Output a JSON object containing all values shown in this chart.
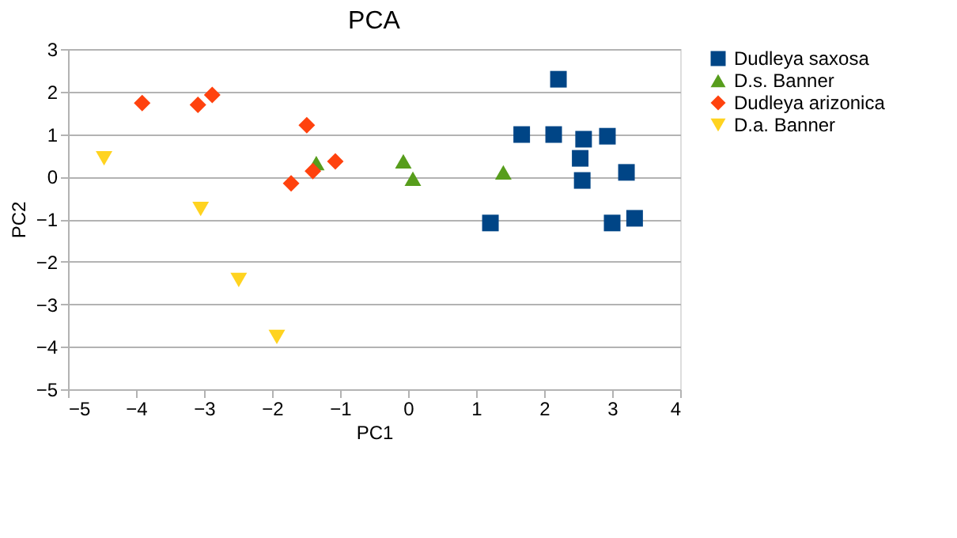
{
  "chart_data": {
    "type": "scatter",
    "title": "PCA",
    "xlabel": "PC1",
    "ylabel": "PC2",
    "xlim": [
      -5,
      4
    ],
    "xticks": [
      -5,
      -4,
      -3,
      -2,
      -1,
      0,
      1,
      2,
      3,
      4
    ],
    "ylim": [
      -5,
      3
    ],
    "yticks": [
      -5,
      -4,
      -3,
      -2,
      -1,
      0,
      1,
      2,
      3
    ],
    "grid": "y",
    "legend": "right",
    "series": [
      {
        "name": "Dudleya saxosa",
        "color": "#004586",
        "marker": "square",
        "x": [
          1.21,
          1.67,
          2.14,
          2.21,
          2.58,
          2.53,
          2.56,
          2.93,
          3.0,
          3.21,
          3.33
        ],
        "values": [
          -1.09,
          0.99,
          0.99,
          2.29,
          0.88,
          0.43,
          -0.09,
          0.95,
          -1.09,
          0.1,
          -0.98
        ]
      },
      {
        "name": "D.s. Banner",
        "color": "#579d1c",
        "marker": "triangle-up",
        "x": [
          1.4,
          -1.35,
          -0.07,
          0.07
        ],
        "values": [
          0.1,
          0.32,
          0.36,
          -0.05
        ]
      },
      {
        "name": "Dudleya arizonica",
        "color": "#ff420e",
        "marker": "diamond",
        "x": [
          -3.91,
          -3.09,
          -2.88,
          -1.49,
          -1.72,
          -1.4,
          -1.07
        ],
        "values": [
          1.73,
          1.69,
          1.92,
          1.21,
          -0.16,
          0.13,
          0.36
        ]
      },
      {
        "name": "D.a. Banner",
        "color": "#ffd320",
        "marker": "triangle-down",
        "x": [
          -4.47,
          -3.05,
          -2.49,
          -1.93
        ],
        "values": [
          0.43,
          -0.76,
          -2.43,
          -3.77
        ]
      }
    ]
  }
}
